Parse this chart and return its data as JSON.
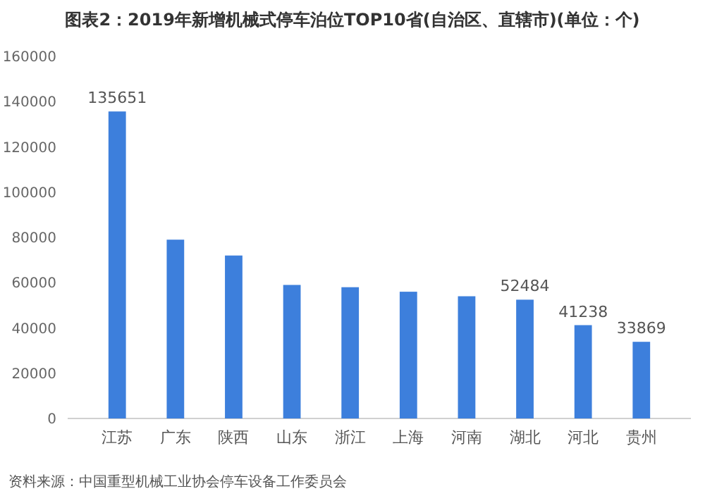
{
  "chart_data": {
    "type": "bar",
    "title": "图表2：2019年新增机械式停车泊位TOP10省(自治区、直辖市)(单位：个)",
    "categories": [
      "江苏",
      "广东",
      "陕西",
      "山东",
      "浙江",
      "上海",
      "河南",
      "湖北",
      "河北",
      "贵州"
    ],
    "values": [
      135651,
      79000,
      72000,
      59000,
      58000,
      56000,
      54000,
      52484,
      41238,
      33869
    ],
    "value_labels": [
      "135651",
      null,
      null,
      null,
      null,
      null,
      null,
      "52484",
      "41238",
      "33869"
    ],
    "color": "#3d7fdc",
    "ylim": [
      0,
      160000
    ],
    "yticks": [
      0,
      20000,
      40000,
      60000,
      80000,
      100000,
      120000,
      140000,
      160000
    ],
    "grid": false,
    "annotations": [
      "资料来源：中国重型机械工业协会停车设备工作委员会"
    ]
  }
}
